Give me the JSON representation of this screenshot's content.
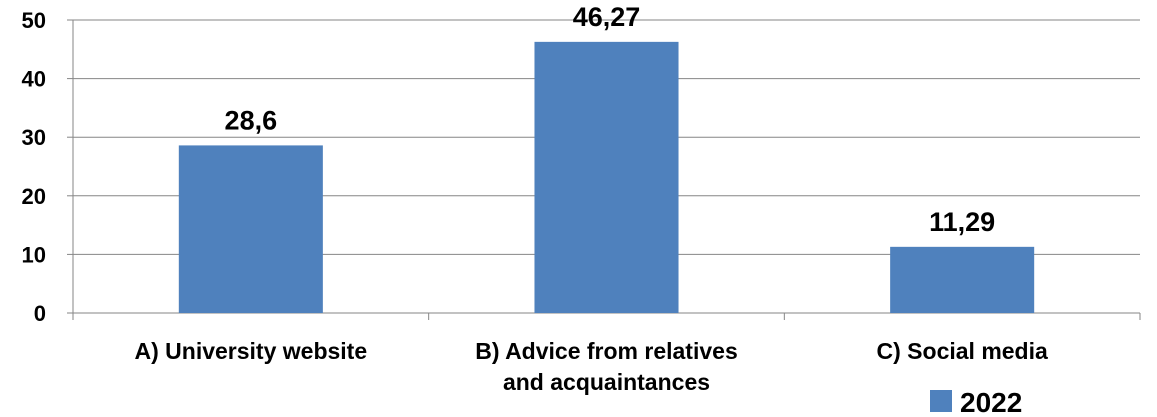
{
  "chart_data": {
    "type": "bar",
    "categories": [
      [
        "A) University website"
      ],
      [
        "B) Advice from relatives",
        "and acquaintances"
      ],
      [
        "C) Social media"
      ]
    ],
    "series": [
      {
        "name": "2022",
        "color": "#4F81BD",
        "values": [
          28.6,
          46.27,
          11.29
        ],
        "data_labels": [
          "28,6",
          "46,27",
          "11,29"
        ]
      }
    ],
    "ylim": [
      0,
      50
    ],
    "yticks": [
      0,
      10,
      20,
      30,
      40,
      50
    ],
    "grid": true,
    "legend_position": "bottom-right"
  }
}
